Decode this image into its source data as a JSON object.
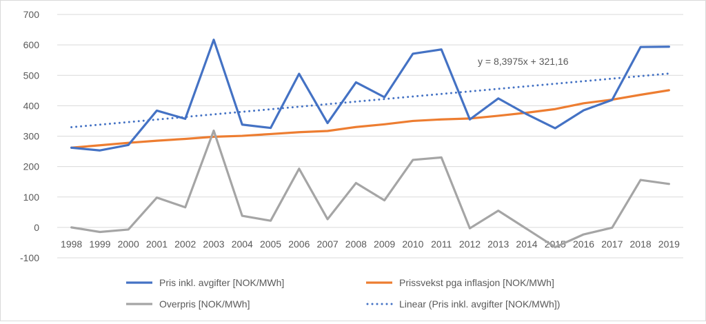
{
  "chart_data": {
    "type": "line",
    "categories": [
      "1998",
      "1999",
      "2000",
      "2001",
      "2002",
      "2003",
      "2004",
      "2005",
      "2006",
      "2007",
      "2008",
      "2009",
      "2010",
      "2011",
      "2012",
      "2013",
      "2014",
      "2015",
      "2016",
      "2017",
      "2018",
      "2019"
    ],
    "ylim": [
      -100,
      700
    ],
    "yticks": [
      -100,
      0,
      100,
      200,
      300,
      400,
      500,
      600,
      700
    ],
    "ytick_labels": [
      "-100",
      "0",
      "100",
      "200",
      "300",
      "400",
      "500",
      "600",
      "700"
    ],
    "grid": true,
    "legend_position": "bottom",
    "series": [
      {
        "name": "Pris inkl. avgifter [NOK/MWh]",
        "color": "#4472c4",
        "style": "solid",
        "values": [
          262,
          253,
          271,
          384,
          357,
          617,
          338,
          327,
          505,
          343,
          477,
          428,
          571,
          585,
          355,
          424,
          372,
          326,
          385,
          419,
          593,
          594
        ]
      },
      {
        "name": "Prissvekst pga inflasjon [NOK/MWh]",
        "color": "#ed7d31",
        "style": "solid",
        "values": [
          262,
          270,
          278,
          285,
          291,
          298,
          301,
          307,
          313,
          317,
          330,
          339,
          350,
          355,
          358,
          367,
          377,
          389,
          408,
          420,
          436,
          451
        ]
      },
      {
        "name": "Overpris [NOK/MWh]",
        "color": "#a5a5a5",
        "style": "solid",
        "values": [
          0,
          -15,
          -7,
          98,
          66,
          318,
          38,
          22,
          193,
          27,
          146,
          89,
          222,
          230,
          -3,
          55,
          -5,
          -65,
          -23,
          -1,
          156,
          143
        ]
      },
      {
        "name": "Linear (Pris inkl. avgifter [NOK/MWh])",
        "color": "#4472c4",
        "style": "dotted",
        "values": [
          329.56,
          337.96,
          346.35,
          354.75,
          363.15,
          371.55,
          379.94,
          388.34,
          396.74,
          405.14,
          413.53,
          421.93,
          430.33,
          438.73,
          447.12,
          455.52,
          463.92,
          472.32,
          480.71,
          489.11,
          497.51,
          505.91
        ]
      }
    ],
    "annotation": "y = 8,3975x + 321,16"
  }
}
